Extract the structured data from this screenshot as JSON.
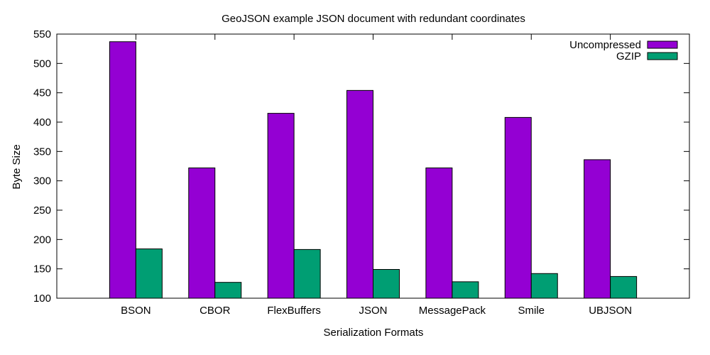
{
  "chart_data": {
    "type": "bar",
    "title": "GeoJSON example JSON document with redundant coordinates",
    "xlabel": "Serialization Formats",
    "ylabel": "Byte Size",
    "categories": [
      "BSON",
      "CBOR",
      "FlexBuffers",
      "JSON",
      "MessagePack",
      "Smile",
      "UBJSON"
    ],
    "series": [
      {
        "name": "Uncompressed",
        "color": "#9400d3",
        "values": [
          537,
          322,
          415,
          454,
          322,
          408,
          336
        ]
      },
      {
        "name": "GZIP",
        "color": "#009e73",
        "values": [
          184,
          127,
          183,
          149,
          128,
          142,
          137
        ]
      }
    ],
    "ylim": [
      100,
      550
    ],
    "yticks": [
      100,
      150,
      200,
      250,
      300,
      350,
      400,
      450,
      500,
      550
    ],
    "legend_position": "top-right",
    "grid": false
  }
}
